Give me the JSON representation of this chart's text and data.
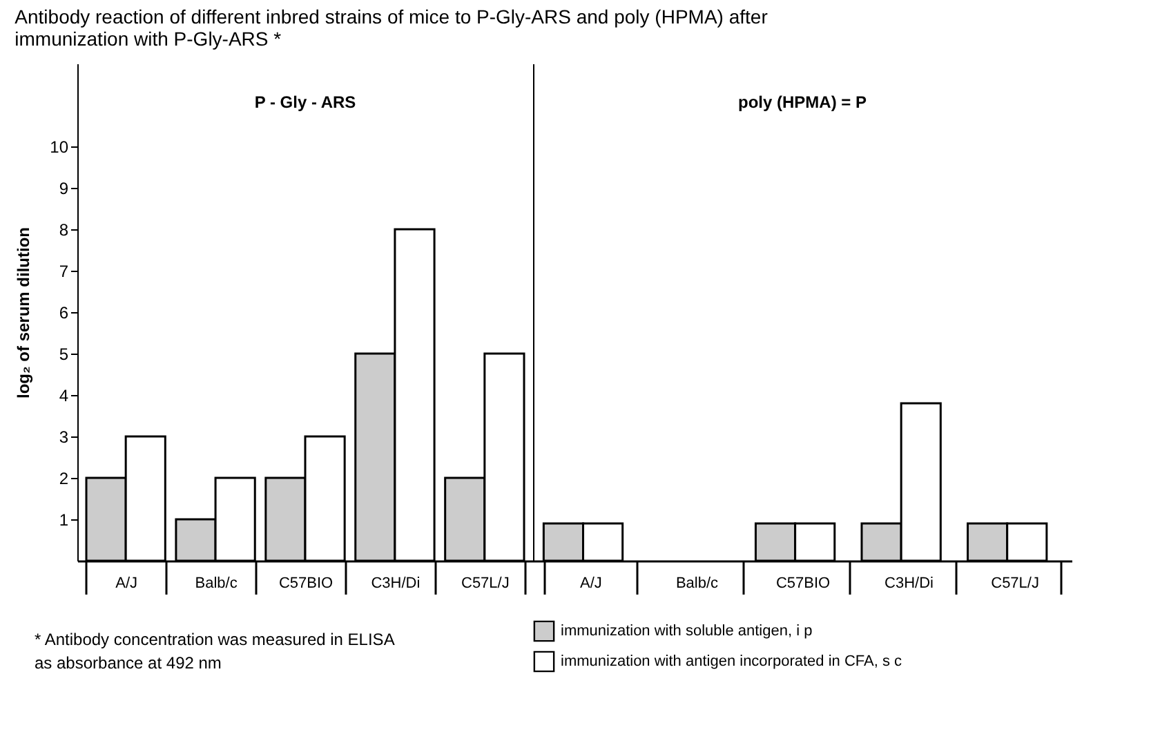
{
  "chart_data": [
    {
      "type": "bar",
      "title": "Antibody reaction of different inbred strains of mice to P-Gly-ARS and poly (HPMA) after immunization with P-Gly-ARS *",
      "ylabel": "log₂ of serum dilution",
      "categories": [
        "A/J",
        "Balb/c",
        "C57BIO",
        "C3H/Di",
        "C57L/J"
      ],
      "series": [
        {
          "color": "#cccccc",
          "values": [
            2,
            1,
            2,
            5,
            2
          ]
        },
        {
          "color": "#ffffff",
          "values": [
            3,
            2,
            3,
            8,
            5
          ]
        }
      ],
      "ylim": [
        0,
        12
      ],
      "yticks": [
        1,
        2,
        3,
        4,
        5,
        6,
        7,
        8,
        9,
        10
      ],
      "annotations": [
        "P - Gly - ARS",
        "* Antibody concentration was measured in ELISA as absorbance at 492 nm"
      ]
    },
    {
      "type": "bar",
      "categories": [
        "A/J",
        "Balb/c",
        "C57BIO",
        "C3H/Di",
        "C57L/J"
      ],
      "series": [
        {
          "name": "immunization with soluble antigen, i p",
          "color": "#cccccc",
          "values": [
            0.9,
            null,
            0.9,
            0.9,
            0.9
          ]
        },
        {
          "name": "immunization with antigen incorporated in CFA, s c",
          "color": "#ffffff",
          "values": [
            0.9,
            null,
            0.9,
            3.8,
            0.9
          ]
        }
      ],
      "ylim": [
        0,
        12
      ],
      "tick_labels": "x",
      "legend": "bottom",
      "annotations": [
        "poly (HPMA) = P"
      ]
    }
  ]
}
